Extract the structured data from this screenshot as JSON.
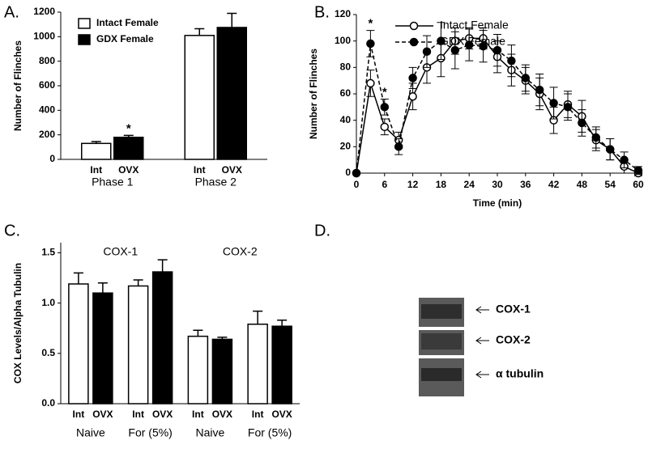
{
  "chart_data": [
    {
      "type": "bar",
      "label": "A.",
      "ylabel": "Number of Flinches",
      "categories": [
        "Phase 1",
        "Phase 2"
      ],
      "bar_labels": [
        "Int",
        "OVX"
      ],
      "series": [
        {
          "name": "Intact Female",
          "color": "#ffffff",
          "values": [
            130,
            1010
          ],
          "errors": [
            15,
            55
          ]
        },
        {
          "name": "GDX Female",
          "color": "#000000",
          "values": [
            180,
            1075
          ],
          "errors": [
            15,
            115
          ]
        }
      ],
      "ylim": [
        0,
        1200
      ],
      "yticks": [
        0,
        200,
        400,
        600,
        800,
        1000,
        1200
      ],
      "legend": "upper-left",
      "annotations": [
        {
          "text": "*",
          "series": 1,
          "index": 0
        }
      ]
    },
    {
      "type": "line",
      "label": "B.",
      "ylabel": "Number of Flinches",
      "xlabel": "Time  (min)",
      "x": [
        0,
        3,
        6,
        9,
        12,
        15,
        18,
        21,
        24,
        27,
        30,
        33,
        36,
        39,
        42,
        45,
        48,
        51,
        54,
        57,
        60
      ],
      "series": [
        {
          "name": "Intact Female",
          "color": "#ffffff",
          "values": [
            0,
            68,
            35,
            25,
            58,
            80,
            87,
            100,
            102,
            102,
            88,
            78,
            70,
            60,
            40,
            52,
            43,
            25,
            18,
            5,
            0
          ],
          "errors": [
            0,
            10,
            6,
            6,
            10,
            12,
            14,
            10,
            8,
            8,
            12,
            12,
            10,
            12,
            10,
            10,
            12,
            8,
            8,
            5,
            2
          ]
        },
        {
          "name": "GDX Female",
          "color": "#000000",
          "values": [
            0,
            98,
            50,
            20,
            72,
            92,
            100,
            93,
            97,
            96,
            93,
            85,
            72,
            63,
            53,
            50,
            38,
            27,
            18,
            10,
            2
          ],
          "errors": [
            0,
            10,
            6,
            6,
            8,
            12,
            14,
            14,
            12,
            12,
            12,
            12,
            10,
            12,
            12,
            10,
            10,
            8,
            8,
            6,
            3
          ]
        }
      ],
      "xlim": [
        0,
        60
      ],
      "xticks": [
        0,
        6,
        12,
        18,
        24,
        30,
        36,
        42,
        48,
        54,
        60
      ],
      "ylim": [
        0,
        120
      ],
      "yticks": [
        0,
        20,
        40,
        60,
        80,
        100,
        120
      ],
      "legend": "upper-right",
      "annotations": [
        {
          "text": "*",
          "series": 1,
          "index": 1
        },
        {
          "text": "*",
          "series": 1,
          "index": 2
        }
      ]
    },
    {
      "type": "bar",
      "label": "C.",
      "ylabel": "COX Levels/Alpha Tubulin",
      "categories": [
        "Naive",
        "For (5%)",
        "Naive",
        "For (5%)"
      ],
      "groups": [
        "COX-1",
        "COX-2"
      ],
      "series": [
        {
          "name": "Int",
          "color": "#ffffff",
          "values": [
            1.19,
            1.17,
            0.67,
            0.79
          ],
          "errors": [
            0.11,
            0.06,
            0.06,
            0.13
          ]
        },
        {
          "name": "OVX",
          "color": "#000000",
          "values": [
            1.1,
            1.31,
            0.64,
            0.77
          ],
          "errors": [
            0.1,
            0.12,
            0.02,
            0.06
          ]
        }
      ],
      "ylim": [
        0,
        1.6
      ],
      "yticks": [
        {
          "value": 0,
          "label": "0.0"
        },
        {
          "value": 0.5,
          "label": "0.5"
        },
        {
          "value": 1,
          "label": "1.0"
        },
        1.5
      ]
    }
  ],
  "blot": {
    "label": "D.",
    "bands": [
      "COX-1",
      "COX-2",
      "α tubulin"
    ]
  }
}
